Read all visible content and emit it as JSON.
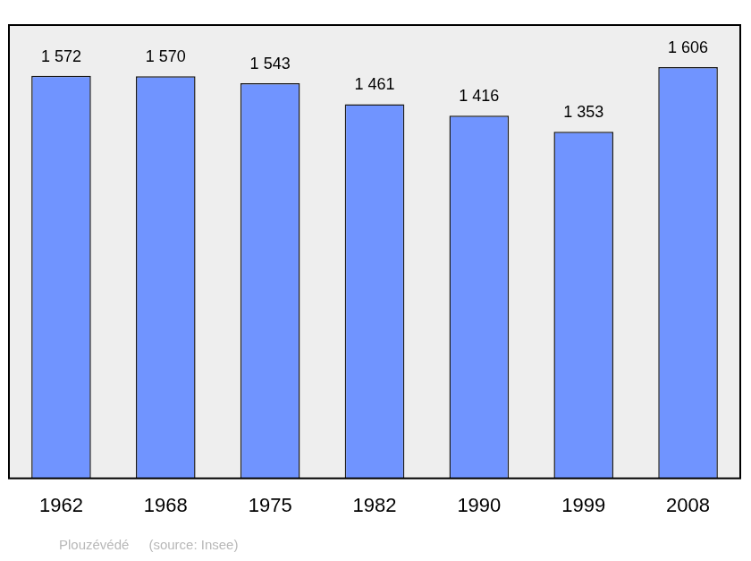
{
  "chart_data": {
    "type": "bar",
    "title": "Plouzévédé",
    "source": "(source: Insee)",
    "categories": [
      "1962",
      "1968",
      "1975",
      "1982",
      "1990",
      "1999",
      "2008"
    ],
    "values": [
      1572,
      1570,
      1543,
      1461,
      1416,
      1353,
      1606
    ],
    "value_labels": [
      "1 572",
      "1 570",
      "1 543",
      "1 461",
      "1 416",
      "1 353",
      "1 606"
    ],
    "data_labels": true,
    "color": "#7094ff",
    "ylim": [
      0,
      1770
    ],
    "grid": false,
    "tick_labels": "x"
  }
}
